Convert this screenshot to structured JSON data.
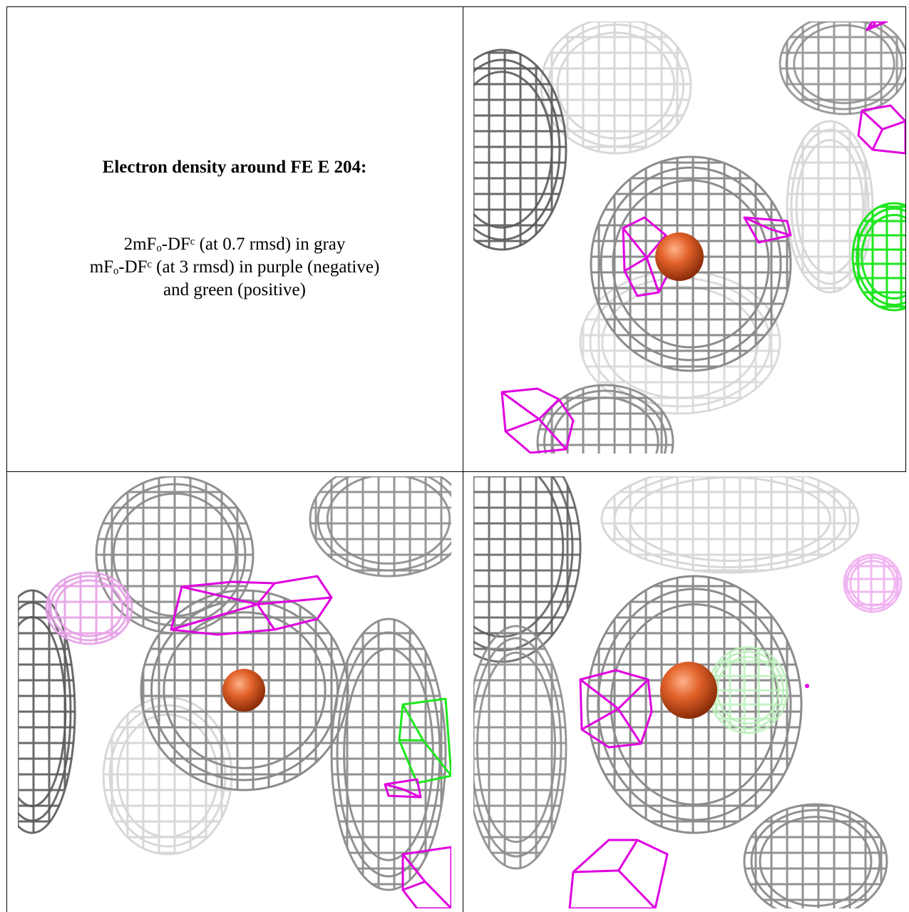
{
  "caption": {
    "title": "Electron density around FE E 204:",
    "lines": [
      "2mFₒ-DFᶜ (at 0.7 rmsd) in gray",
      "mFₒ-DFᶜ (at 3 rmsd) in purple (negative)",
      "and green (positive)"
    ]
  },
  "colors": {
    "gray_mesh": "#8c8c8c",
    "gray_mesh_dark": "#5a5a5a",
    "gray_mesh_light": "#d8d8d8",
    "negative": "#e000e0",
    "positive": "#1ee61e",
    "atom": "#e2622a"
  },
  "panels": [
    {
      "id": "view-1",
      "icon": "electron-density-view"
    },
    {
      "id": "view-2",
      "icon": "electron-density-view"
    },
    {
      "id": "view-3",
      "icon": "electron-density-view"
    }
  ]
}
